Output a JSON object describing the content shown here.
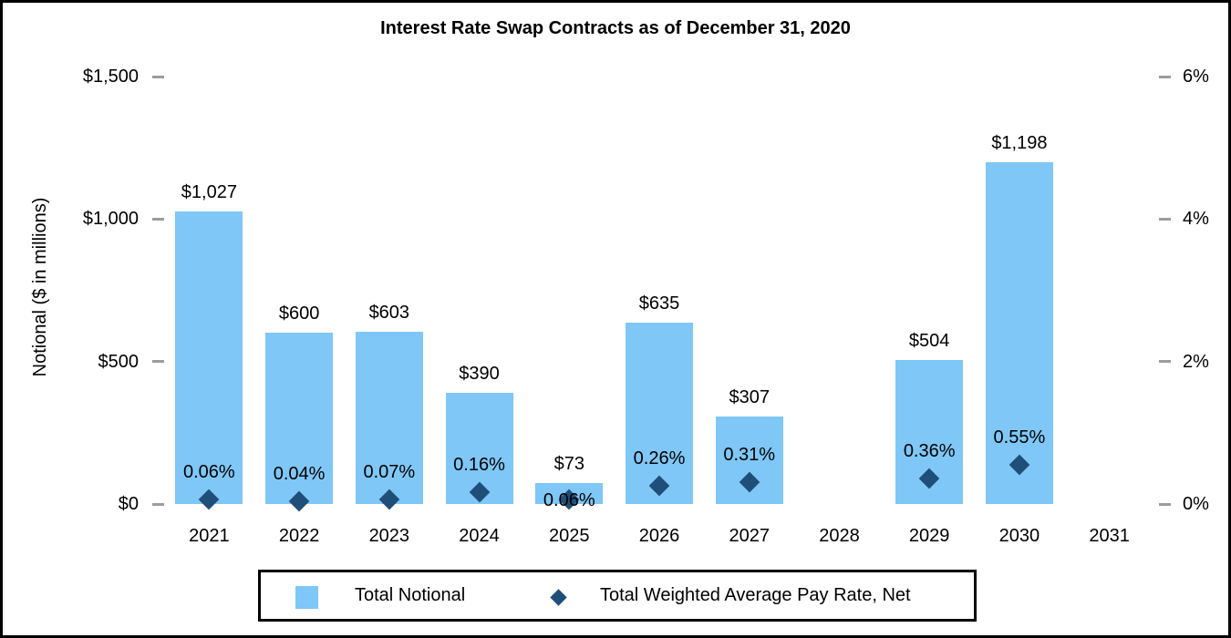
{
  "title": "Interest Rate Swap Contracts as of December 31, 2020",
  "legend": {
    "bar_label": "Total Notional",
    "marker_label": "Total Weighted Average Pay Rate, Net"
  },
  "colors": {
    "bar": "#7EC7F6",
    "marker": "#1F4E79",
    "tick": "#9C9C9C",
    "text": "#000000",
    "border": "#000000"
  },
  "chart_data": {
    "type": "bar",
    "subtype": "combo bar + scatter, dual axis",
    "title": "Interest Rate Swap Contracts as of December 31, 2020",
    "categories": [
      "2021",
      "2022",
      "2023",
      "2024",
      "2025",
      "2026",
      "2027",
      "2028",
      "2029",
      "2030",
      "2031"
    ],
    "series": [
      {
        "name": "Total Notional",
        "type": "bar",
        "axis": "left",
        "values": [
          1027,
          600,
          603,
          390,
          73,
          635,
          307,
          null,
          504,
          1198,
          null
        ],
        "labels": [
          "$1,027",
          "$600",
          "$603",
          "$390",
          "$73",
          "$635",
          "$307",
          null,
          "$504",
          "$1,198",
          null
        ]
      },
      {
        "name": "Total Weighted Average Pay Rate, Net",
        "type": "scatter",
        "marker": "diamond",
        "axis": "right",
        "values": [
          0.06,
          0.04,
          0.07,
          0.16,
          0.06,
          0.26,
          0.31,
          null,
          0.36,
          0.55,
          null
        ],
        "labels": [
          "0.06%",
          "0.04%",
          "0.07%",
          "0.16%",
          "0.06%",
          "0.26%",
          "0.31%",
          null,
          "0.36%",
          "0.55%",
          null
        ],
        "label_overlaps_marker": [
          false,
          false,
          false,
          false,
          true,
          false,
          false,
          false,
          false,
          false,
          false
        ]
      }
    ],
    "left_axis": {
      "label": "Notional ($ in millions)",
      "range": [
        0,
        1500
      ],
      "tick_step": 500,
      "tick_labels": [
        "$0",
        "$500",
        "$1,000",
        "$1,500"
      ]
    },
    "right_axis": {
      "range": [
        0,
        6
      ],
      "tick_step": 2,
      "tick_labels": [
        "0%",
        "2%",
        "4%",
        "6%"
      ]
    },
    "grid": false,
    "legend_position": "bottom"
  }
}
